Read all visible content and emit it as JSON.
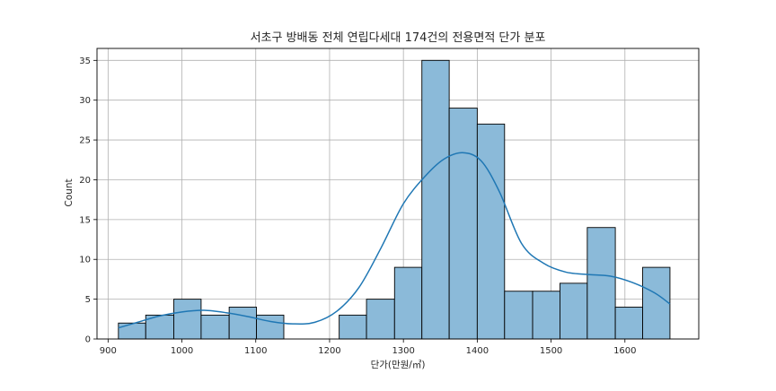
{
  "chart_data": {
    "type": "histogram",
    "title": "서초구 방배동 전체 연립다세대 174건의 전용면적 단가 분포",
    "xlabel": "단가(만원/㎡)",
    "ylabel": "Count",
    "xlim": [
      885,
      1700
    ],
    "ylim": [
      0,
      36.5
    ],
    "x_ticks": [
      "900",
      "1000",
      "1100",
      "1200",
      "1300",
      "1400",
      "1500",
      "1600"
    ],
    "y_ticks": [
      "0",
      "5",
      "10",
      "15",
      "20",
      "25",
      "30",
      "35"
    ],
    "grid": true,
    "bins": [
      {
        "x0": 914,
        "x1": 951,
        "count": 2
      },
      {
        "x0": 951,
        "x1": 989,
        "count": 3
      },
      {
        "x0": 989,
        "x1": 1026,
        "count": 5
      },
      {
        "x0": 1026,
        "x1": 1064,
        "count": 3
      },
      {
        "x0": 1064,
        "x1": 1101,
        "count": 4
      },
      {
        "x0": 1101,
        "x1": 1138,
        "count": 3
      },
      {
        "x0": 1138,
        "x1": 1176,
        "count": 0
      },
      {
        "x0": 1176,
        "x1": 1213,
        "count": 0
      },
      {
        "x0": 1213,
        "x1": 1250,
        "count": 3
      },
      {
        "x0": 1250,
        "x1": 1288,
        "count": 5
      },
      {
        "x0": 1288,
        "x1": 1325,
        "count": 9
      },
      {
        "x0": 1325,
        "x1": 1362,
        "count": 35
      },
      {
        "x0": 1362,
        "x1": 1400,
        "count": 29
      },
      {
        "x0": 1400,
        "x1": 1437,
        "count": 27
      },
      {
        "x0": 1437,
        "x1": 1475,
        "count": 6
      },
      {
        "x0": 1475,
        "x1": 1512,
        "count": 6
      },
      {
        "x0": 1512,
        "x1": 1549,
        "count": 7
      },
      {
        "x0": 1549,
        "x1": 1587,
        "count": 14
      },
      {
        "x0": 1587,
        "x1": 1624,
        "count": 4
      },
      {
        "x0": 1624,
        "x1": 1661,
        "count": 9
      }
    ],
    "kde": {
      "x": [
        914,
        940,
        970,
        1000,
        1030,
        1060,
        1090,
        1120,
        1150,
        1180,
        1210,
        1240,
        1270,
        1300,
        1330,
        1355,
        1380,
        1405,
        1430,
        1460,
        1490,
        1520,
        1550,
        1580,
        1610,
        1640,
        1661
      ],
      "y": [
        1.4,
        2.1,
        2.9,
        3.4,
        3.6,
        3.3,
        2.8,
        2.2,
        1.9,
        2.1,
        3.5,
        6.5,
        11.5,
        17.0,
        20.5,
        22.6,
        23.4,
        22.4,
        18.5,
        12.0,
        9.5,
        8.4,
        8.1,
        7.9,
        7.1,
        5.8,
        4.4
      ]
    },
    "bar_color": "#8bbad9",
    "bar_edge_color": "#000000",
    "kde_color": "#1f77b4",
    "grid_color": "#b0b0b0"
  }
}
